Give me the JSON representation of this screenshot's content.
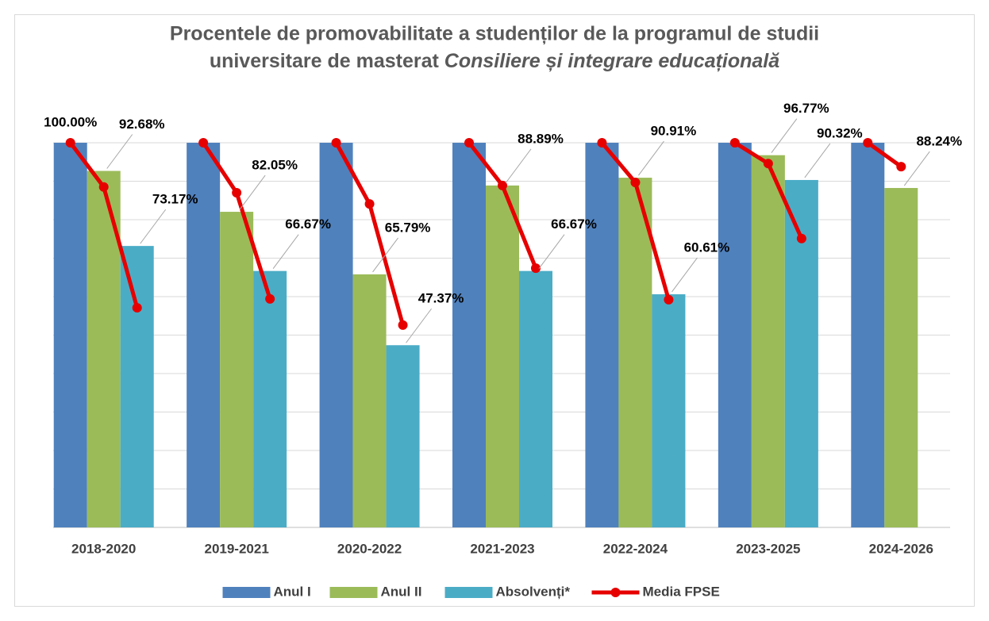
{
  "chart_data": {
    "type": "bar",
    "title": {
      "line1": "Procentele de promovabilitate a studenților de la programul de studii",
      "line2": "universitare de masterat",
      "line2_italic": "Consiliere și integrare educațională"
    },
    "categories": [
      "2018-2020",
      "2019-2021",
      "2020-2022",
      "2021-2023",
      "2022-2024",
      "2023-2025",
      "2024-2026"
    ],
    "series": [
      {
        "name": "Anul I",
        "color": "#4f81bd",
        "values": [
          100,
          100,
          100,
          100,
          100,
          100,
          100
        ],
        "value_labels": [
          "100.00%",
          null,
          null,
          null,
          null,
          null,
          null
        ]
      },
      {
        "name": "Anul II",
        "color": "#9bbb59",
        "values": [
          92.68,
          82.05,
          65.79,
          88.89,
          90.91,
          96.77,
          88.24
        ],
        "value_labels": [
          "92.68%",
          "82.05%",
          "65.79%",
          "88.89%",
          "90.91%",
          "96.77%",
          "88.24%"
        ]
      },
      {
        "name": "Absolvenți*",
        "color": "#4bacc6",
        "values": [
          73.17,
          66.67,
          47.37,
          66.67,
          60.61,
          90.32,
          null
        ],
        "value_labels": [
          "73.17%",
          "66.67%",
          "47.37%",
          "66.67%",
          "60.61%",
          "90.32%",
          null
        ]
      },
      {
        "name": "Media FPSE",
        "type": "line",
        "color": "#e60000",
        "values": [
          [
            100,
            88.5,
            57.1
          ],
          [
            100,
            87.0,
            59.4
          ],
          [
            100,
            84.1,
            52.6
          ],
          [
            100,
            88.9,
            67.4
          ],
          [
            100,
            89.7,
            59.2
          ],
          [
            100,
            94.6,
            75.1
          ],
          [
            100,
            93.8,
            null
          ]
        ]
      }
    ],
    "ylim": [
      0,
      100
    ],
    "yticks": [
      0,
      10,
      20,
      30,
      40,
      50,
      60,
      70,
      80,
      90,
      100
    ],
    "grid": true,
    "legend": "bottom"
  }
}
